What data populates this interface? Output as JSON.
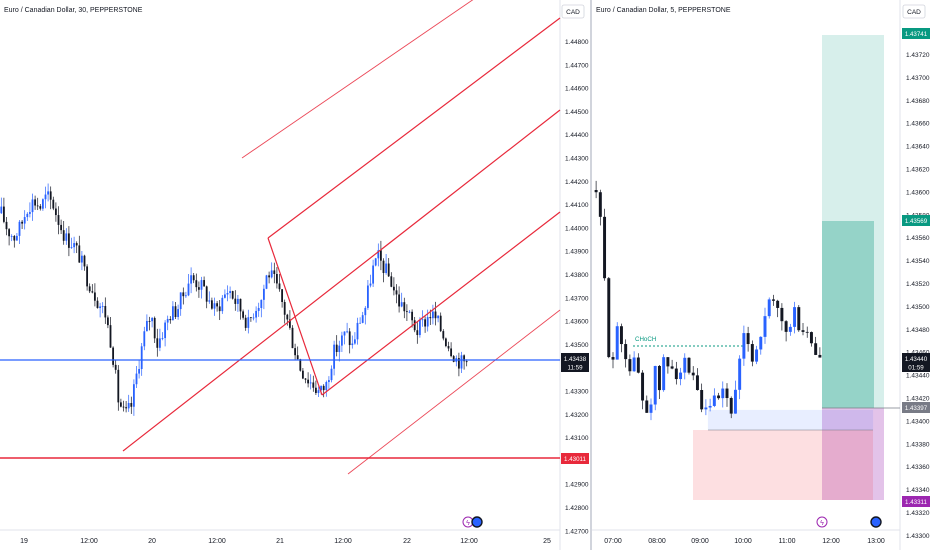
{
  "left_panel": {
    "symbol_title": "Euro / Canadian Dollar, 30, PEPPERSTONE",
    "currency": "CAD",
    "y_ticks": [
      "1.44800",
      "1.44700",
      "1.44600",
      "1.44500",
      "1.44400",
      "1.44300",
      "1.44200",
      "1.44100",
      "1.44000",
      "1.43900",
      "1.43800",
      "1.43700",
      "1.43600",
      "1.43500",
      "1.43400",
      "1.43300",
      "1.43200",
      "1.43100",
      "1.43000",
      "1.42900",
      "1.42800",
      "1.42700"
    ],
    "x_ticks": [
      "19",
      "12:00",
      "20",
      "12:00",
      "21",
      "12:00",
      "22",
      "12:00",
      "25"
    ],
    "price_tag": {
      "price": "1.43438",
      "countdown": "11:59"
    },
    "support_tag": "1.43011",
    "colors": {
      "up": "#2962ff",
      "down": "#131722",
      "line_blue": "#2962ff",
      "line_red": "#e8293b"
    }
  },
  "right_panel": {
    "symbol_title": "Euro / Canadian Dollar, 5, PEPPERSTONE",
    "currency": "CAD",
    "y_ticks": [
      "1.43720",
      "1.43700",
      "1.43680",
      "1.43660",
      "1.43640",
      "1.43620",
      "1.43600",
      "1.43580",
      "1.43560",
      "1.43540",
      "1.43520",
      "1.43500",
      "1.43480",
      "1.43460",
      "1.43440",
      "1.43420",
      "1.43400",
      "1.43380",
      "1.43360",
      "1.43340",
      "1.43320",
      "1.43300"
    ],
    "x_ticks": [
      "07:00",
      "08:00",
      "09:00",
      "10:00",
      "11:00",
      "12:00",
      "13:00"
    ],
    "annotation": "CHoCH",
    "tags": {
      "target": "1.43741",
      "tp1": "1.43569",
      "price": "1.43440",
      "countdown": "01:59",
      "entry": "1.43397",
      "stop": "1.43311"
    },
    "colors": {
      "green": "#089981",
      "purple": "#9c27b0",
      "dark": "#131722"
    }
  },
  "chart_data": [
    {
      "type": "candlestick",
      "title": "Euro / Canadian Dollar, 30, PEPPERSTONE",
      "ylim": [
        1.4265,
        1.4493
      ],
      "x_tick_labels": [
        "19",
        "12:00",
        "20",
        "12:00",
        "21",
        "12:00",
        "22",
        "12:00",
        "25"
      ],
      "close_path": [
        1.4413,
        1.4405,
        1.4402,
        1.4407,
        1.4416,
        1.4419,
        1.4416,
        1.4421,
        1.4417,
        1.4408,
        1.4401,
        1.4399,
        1.4393,
        1.4384,
        1.4378,
        1.4371,
        1.4366,
        1.4351,
        1.4326,
        1.4318,
        1.4323,
        1.4341,
        1.4356,
        1.4366,
        1.4352,
        1.4359,
        1.4366,
        1.4368,
        1.4375,
        1.4383,
        1.4381,
        1.4378,
        1.4372,
        1.4367,
        1.4373,
        1.4378,
        1.4372,
        1.4367,
        1.4361,
        1.4369,
        1.4373,
        1.4386,
        1.4381,
        1.4373,
        1.4363,
        1.4351,
        1.4341,
        1.4336,
        1.4333,
        1.4329,
        1.4333,
        1.4347,
        1.4352,
        1.4357,
        1.4351,
        1.4362,
        1.4369,
        1.4386,
        1.4392,
        1.4387,
        1.4381,
        1.4372,
        1.4369,
        1.4363,
        1.4358,
        1.4362,
        1.4366,
        1.4363,
        1.4356,
        1.4351,
        1.4345,
        1.4343,
        1.4344
      ],
      "horizontal_lines": [
        {
          "price": 1.43438,
          "color": "blue"
        },
        {
          "price": 1.43011,
          "color": "red"
        }
      ]
    },
    {
      "type": "candlestick",
      "title": "Euro / Canadian Dollar, 5, PEPPERSTONE",
      "ylim": [
        1.4327,
        1.4375
      ],
      "x_tick_labels": [
        "07:00",
        "08:00",
        "09:00",
        "10:00",
        "11:00",
        "12:00",
        "13:00"
      ],
      "close_path": [
        1.436,
        1.4356,
        1.4349,
        1.4341,
        1.4346,
        1.4345,
        1.4344,
        1.4342,
        1.4343,
        1.4341,
        1.4338,
        1.4338,
        1.4342,
        1.434,
        1.4343,
        1.4342,
        1.4343,
        1.4341,
        1.4343,
        1.4341,
        1.4341,
        1.4339,
        1.4337,
        1.4338,
        1.4339,
        1.4338,
        1.434,
        1.4339,
        1.4338,
        1.434,
        1.4344,
        1.4346,
        1.4343,
        1.4344,
        1.4346,
        1.4347,
        1.4349,
        1.4348,
        1.4347,
        1.4346,
        1.4346,
        1.4348,
        1.4346,
        1.4346,
        1.4345,
        1.4344,
        1.4343,
        1.4344
      ],
      "choch_level": 1.43476,
      "long_position": {
        "entry": 1.43397,
        "stop": 1.43311,
        "target": 1.43741,
        "tp1": 1.43569
      }
    }
  ]
}
